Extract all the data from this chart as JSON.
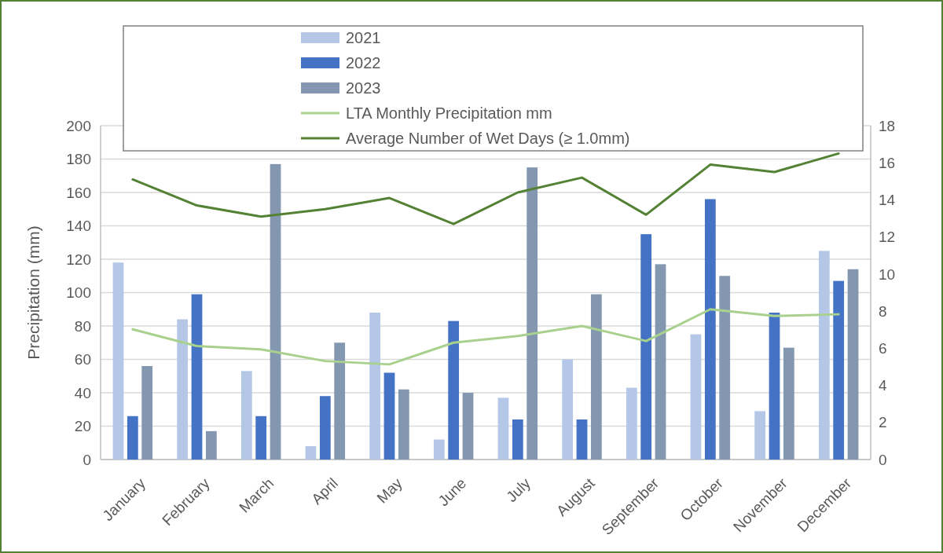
{
  "chart_data": {
    "type": "bar",
    "categories": [
      "January",
      "February",
      "March",
      "April",
      "May",
      "June",
      "July",
      "August",
      "September",
      "October",
      "November",
      "December"
    ],
    "ylabel": "Precipitation (mm)",
    "ylim": [
      0,
      200
    ],
    "yticks": [
      0,
      20,
      40,
      60,
      80,
      100,
      120,
      140,
      160,
      180,
      200
    ],
    "y2lim": [
      0,
      18
    ],
    "y2ticks": [
      0,
      2,
      4,
      6,
      8,
      10,
      12,
      14,
      16,
      18
    ],
    "grid": "y",
    "legend": "top",
    "series": [
      {
        "name": "2021",
        "color": "#b4c7e7",
        "values": [
          118,
          84,
          53,
          8,
          88,
          12,
          37,
          60,
          43,
          75,
          29,
          125
        ]
      },
      {
        "name": "2022",
        "color": "#4472c4",
        "values": [
          26,
          99,
          26,
          38,
          52,
          83,
          24,
          24,
          135,
          156,
          88,
          107
        ]
      },
      {
        "name": "2023",
        "color": "#8497b0",
        "values": [
          56,
          17,
          177,
          70,
          42,
          40,
          175,
          99,
          117,
          110,
          67,
          114
        ]
      },
      {
        "name": "LTA Monthly Precipitation mm",
        "type": "line",
        "color": "#a9d18e",
        "values": [
          78,
          68,
          66,
          59,
          57,
          70,
          74,
          80,
          71,
          90,
          86,
          87
        ]
      },
      {
        "name": "Average Number of Wet Days (≥ 1.0mm)",
        "type": "line",
        "axis": "y2",
        "color": "#548235",
        "values": [
          15.1,
          13.7,
          13.1,
          13.5,
          14.1,
          12.7,
          14.4,
          15.2,
          13.2,
          15.9,
          15.5,
          16.5
        ]
      }
    ]
  }
}
